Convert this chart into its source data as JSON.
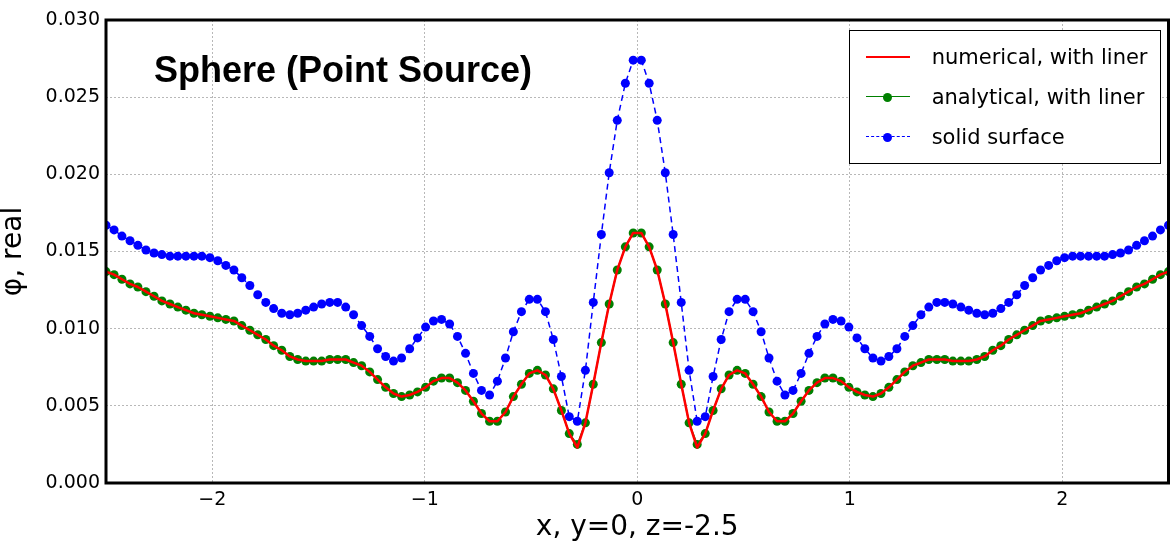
{
  "chart_data": {
    "type": "line",
    "title": "Sphere (Point Source)",
    "xlabel": "x, y=0, z=-2.5",
    "ylabel": "φ, real",
    "x": [
      -2.5,
      -2.462,
      -2.425,
      -2.387,
      -2.35,
      -2.312,
      -2.274,
      -2.237,
      -2.199,
      -2.162,
      -2.124,
      -2.086,
      -2.049,
      -2.011,
      -1.974,
      -1.936,
      -1.898,
      -1.861,
      -1.823,
      -1.786,
      -1.748,
      -1.711,
      -1.673,
      -1.635,
      -1.598,
      -1.56,
      -1.523,
      -1.485,
      -1.447,
      -1.41,
      -1.372,
      -1.335,
      -1.297,
      -1.259,
      -1.222,
      -1.184,
      -1.147,
      -1.109,
      -1.071,
      -1.034,
      -0.996,
      -0.959,
      -0.921,
      -0.883,
      -0.846,
      -0.808,
      -0.771,
      -0.733,
      -0.695,
      -0.658,
      -0.62,
      -0.583,
      -0.545,
      -0.508,
      -0.47,
      -0.432,
      -0.395,
      -0.357,
      -0.32,
      -0.282,
      -0.244,
      -0.207,
      -0.169,
      -0.132,
      -0.094,
      -0.056,
      -0.019,
      0.019,
      0.056,
      0.094,
      0.132,
      0.169,
      0.207,
      0.244,
      0.282,
      0.32,
      0.357,
      0.395,
      0.432,
      0.47,
      0.508,
      0.545,
      0.583,
      0.62,
      0.658,
      0.695,
      0.733,
      0.771,
      0.808,
      0.846,
      0.883,
      0.921,
      0.959,
      0.996,
      1.034,
      1.071,
      1.109,
      1.147,
      1.184,
      1.222,
      1.259,
      1.297,
      1.335,
      1.372,
      1.41,
      1.447,
      1.485,
      1.523,
      1.56,
      1.598,
      1.635,
      1.673,
      1.711,
      1.748,
      1.786,
      1.823,
      1.861,
      1.898,
      1.936,
      1.974,
      2.011,
      2.049,
      2.086,
      2.124,
      2.162,
      2.199,
      2.237,
      2.274,
      2.312,
      2.35,
      2.387,
      2.425,
      2.462,
      2.5
    ],
    "series": [
      {
        "name": "numerical, with liner",
        "color": "#ff0000",
        "marker": "none",
        "line_style": "solid",
        "values": [
          0.0137,
          0.0135,
          0.0132,
          0.0129,
          0.0127,
          0.0124,
          0.0121,
          0.0118,
          0.0116,
          0.0114,
          0.0112,
          0.011,
          0.0109,
          0.0108,
          0.0107,
          0.0106,
          0.0105,
          0.0102,
          0.0099,
          0.0096,
          0.0093,
          0.0089,
          0.0086,
          0.0082,
          0.008,
          0.0079,
          0.0079,
          0.0079,
          0.008,
          0.008,
          0.008,
          0.0078,
          0.0076,
          0.0072,
          0.0067,
          0.0062,
          0.0058,
          0.0056,
          0.0057,
          0.0059,
          0.0062,
          0.0066,
          0.0068,
          0.0068,
          0.0065,
          0.006,
          0.0053,
          0.0045,
          0.004,
          0.004,
          0.0046,
          0.0056,
          0.0064,
          0.0071,
          0.0073,
          0.007,
          0.0061,
          0.0047,
          0.0032,
          0.0023,
          0.0039,
          0.0064,
          0.0091,
          0.0116,
          0.0138,
          0.0153,
          0.0162,
          0.0162,
          0.0153,
          0.0138,
          0.0116,
          0.0091,
          0.0064,
          0.0039,
          0.0023,
          0.0032,
          0.0047,
          0.0061,
          0.007,
          0.0073,
          0.0071,
          0.0064,
          0.0056,
          0.0046,
          0.004,
          0.004,
          0.0045,
          0.0053,
          0.006,
          0.0065,
          0.0068,
          0.0068,
          0.0066,
          0.0062,
          0.0059,
          0.0057,
          0.0056,
          0.0058,
          0.0062,
          0.0067,
          0.0072,
          0.0076,
          0.0078,
          0.008,
          0.008,
          0.008,
          0.0079,
          0.0079,
          0.0079,
          0.008,
          0.0082,
          0.0086,
          0.0089,
          0.0093,
          0.0096,
          0.0099,
          0.0102,
          0.0105,
          0.0106,
          0.0107,
          0.0108,
          0.0109,
          0.011,
          0.0112,
          0.0114,
          0.0116,
          0.0118,
          0.0121,
          0.0124,
          0.0127,
          0.0129,
          0.0132,
          0.0135,
          0.0137
        ]
      },
      {
        "name": "analytical, with liner",
        "color": "#008000",
        "marker": "circle",
        "line_style": "solid",
        "values": [
          0.0137,
          0.0135,
          0.0132,
          0.0129,
          0.0127,
          0.0124,
          0.0121,
          0.0118,
          0.0116,
          0.0114,
          0.0112,
          0.011,
          0.0109,
          0.0108,
          0.0107,
          0.0106,
          0.0105,
          0.0102,
          0.0099,
          0.0096,
          0.0093,
          0.0089,
          0.0086,
          0.0082,
          0.008,
          0.0079,
          0.0079,
          0.0079,
          0.008,
          0.008,
          0.008,
          0.0078,
          0.0076,
          0.0072,
          0.0067,
          0.0062,
          0.0058,
          0.0056,
          0.0057,
          0.0059,
          0.0062,
          0.0066,
          0.0068,
          0.0068,
          0.0065,
          0.006,
          0.0053,
          0.0045,
          0.004,
          0.004,
          0.0046,
          0.0056,
          0.0064,
          0.0071,
          0.0073,
          0.007,
          0.0061,
          0.0047,
          0.0032,
          0.0025,
          0.0039,
          0.0064,
          0.0091,
          0.0116,
          0.0138,
          0.0153,
          0.0162,
          0.0162,
          0.0153,
          0.0138,
          0.0116,
          0.0091,
          0.0064,
          0.0039,
          0.0025,
          0.0032,
          0.0047,
          0.0061,
          0.007,
          0.0073,
          0.0071,
          0.0064,
          0.0056,
          0.0046,
          0.004,
          0.004,
          0.0045,
          0.0053,
          0.006,
          0.0065,
          0.0068,
          0.0068,
          0.0066,
          0.0062,
          0.0059,
          0.0057,
          0.0056,
          0.0058,
          0.0062,
          0.0067,
          0.0072,
          0.0076,
          0.0078,
          0.008,
          0.008,
          0.008,
          0.0079,
          0.0079,
          0.0079,
          0.008,
          0.0082,
          0.0086,
          0.0089,
          0.0093,
          0.0096,
          0.0099,
          0.0102,
          0.0105,
          0.0106,
          0.0107,
          0.0108,
          0.0109,
          0.011,
          0.0112,
          0.0114,
          0.0116,
          0.0118,
          0.0121,
          0.0124,
          0.0127,
          0.0129,
          0.0132,
          0.0135,
          0.0137
        ]
      },
      {
        "name": "solid surface",
        "color": "#0000ff",
        "marker": "circle",
        "line_style": "dashed",
        "values": [
          0.0167,
          0.0164,
          0.016,
          0.0157,
          0.0154,
          0.0151,
          0.0149,
          0.0148,
          0.0147,
          0.0147,
          0.0147,
          0.0147,
          0.0147,
          0.0146,
          0.0144,
          0.0141,
          0.0138,
          0.0133,
          0.0128,
          0.0122,
          0.0117,
          0.0113,
          0.011,
          0.0109,
          0.011,
          0.0112,
          0.0114,
          0.0116,
          0.0117,
          0.0117,
          0.0114,
          0.0109,
          0.0102,
          0.0095,
          0.0087,
          0.0082,
          0.0079,
          0.0081,
          0.0087,
          0.0094,
          0.0101,
          0.0105,
          0.0106,
          0.0103,
          0.0095,
          0.0084,
          0.0071,
          0.006,
          0.0057,
          0.0066,
          0.0081,
          0.0098,
          0.0111,
          0.0119,
          0.0119,
          0.0111,
          0.0093,
          0.0069,
          0.0043,
          0.004,
          0.0073,
          0.0117,
          0.0161,
          0.0201,
          0.0235,
          0.0259,
          0.0274,
          0.0274,
          0.0259,
          0.0235,
          0.0201,
          0.0161,
          0.0117,
          0.0073,
          0.004,
          0.0043,
          0.0069,
          0.0093,
          0.0111,
          0.0119,
          0.0119,
          0.0111,
          0.0098,
          0.0081,
          0.0066,
          0.0057,
          0.006,
          0.0071,
          0.0084,
          0.0095,
          0.0103,
          0.0106,
          0.0105,
          0.0101,
          0.0094,
          0.0087,
          0.0081,
          0.0079,
          0.0082,
          0.0087,
          0.0095,
          0.0102,
          0.0109,
          0.0114,
          0.0117,
          0.0117,
          0.0116,
          0.0114,
          0.0112,
          0.011,
          0.0109,
          0.011,
          0.0113,
          0.0117,
          0.0122,
          0.0128,
          0.0133,
          0.0138,
          0.0141,
          0.0144,
          0.0146,
          0.0147,
          0.0147,
          0.0147,
          0.0147,
          0.0147,
          0.0148,
          0.0149,
          0.0151,
          0.0154,
          0.0157,
          0.016,
          0.0164,
          0.0167
        ]
      }
    ],
    "xlim": [
      -2.5,
      2.5
    ],
    "xticks": [
      {
        "value": -2,
        "label": "−2"
      },
      {
        "value": -1,
        "label": "−1"
      },
      0,
      1,
      2
    ],
    "ylim": [
      0,
      0.03
    ],
    "yticks": [
      {
        "value": 0,
        "label": "0.000"
      },
      0.005,
      {
        "value": 0.01,
        "label": "0.010"
      },
      0.015,
      {
        "value": 0.02,
        "label": "0.020"
      },
      0.025,
      {
        "value": 0.03,
        "label": "0.030"
      }
    ],
    "grid": true,
    "legend": "top right"
  }
}
